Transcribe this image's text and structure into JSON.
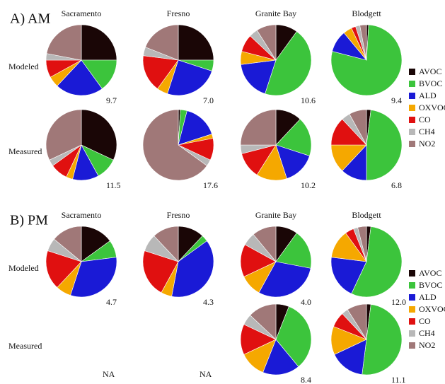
{
  "panels": [
    {
      "title": "A) AM",
      "columns": [
        "Sacramento",
        "Fresno",
        "Granite Bay",
        "Blodgett"
      ],
      "rows": [
        "Modeled",
        "Measured"
      ],
      "legend": {
        "categories": [
          "AVOC",
          "BVOC",
          "ALD",
          "OXVOC",
          "CO",
          "CH4",
          "NO2"
        ],
        "colors": [
          "#1a0606",
          "#3cc43c",
          "#1a1ad6",
          "#f5a800",
          "#e01010",
          "#b8b8b8",
          "#a07878"
        ]
      }
    },
    {
      "title": "B) PM",
      "columns": [
        "Sacramento",
        "Fresno",
        "Granite Bay",
        "Blodgett"
      ],
      "rows": [
        "Modeled",
        "Measured"
      ],
      "legend": {
        "categories": [
          "AVOC",
          "BVOC",
          "ALD",
          "OXVOC",
          "CO",
          "CH4",
          "NO2"
        ],
        "colors": [
          "#1a0606",
          "#3cc43c",
          "#1a1ad6",
          "#f5a800",
          "#e01010",
          "#b8b8b8",
          "#a07878"
        ]
      },
      "notes": [
        "NA",
        "NA"
      ]
    }
  ],
  "chart_data": [
    {
      "type": "pie",
      "values": [
        25,
        15,
        22,
        5,
        8,
        3,
        22
      ],
      "annotation": "9.7"
    },
    {
      "type": "pie",
      "values": [
        25,
        5,
        25,
        5,
        17,
        4,
        19
      ],
      "annotation": "7.0"
    },
    {
      "type": "pie",
      "values": [
        10,
        45,
        18,
        6,
        8,
        4,
        9
      ],
      "annotation": "10.6"
    },
    {
      "type": "pie",
      "values": [
        1,
        78,
        10,
        4,
        2,
        2,
        3
      ],
      "annotation": "9.4"
    },
    {
      "type": "pie",
      "values": [
        32,
        10,
        12,
        3,
        8,
        3,
        32
      ],
      "annotation": "11.5"
    },
    {
      "type": "pie",
      "values": [
        1,
        3,
        16,
        2,
        10,
        3,
        65
      ],
      "annotation": "17.6"
    },
    {
      "type": "pie",
      "values": [
        12,
        18,
        15,
        14,
        12,
        4,
        25
      ],
      "annotation": "10.2"
    },
    {
      "type": "pie",
      "values": [
        2,
        48,
        12,
        13,
        13,
        4,
        8
      ],
      "annotation": "6.8"
    },
    {
      "type": "pie",
      "values": [
        15,
        8,
        32,
        7,
        18,
        6,
        14
      ],
      "annotation": "4.7"
    },
    {
      "type": "pie",
      "values": [
        12,
        3,
        38,
        5,
        22,
        8,
        12
      ],
      "annotation": "4.3"
    },
    {
      "type": "pie",
      "values": [
        10,
        18,
        30,
        10,
        15,
        6,
        11
      ],
      "annotation": "4.0"
    },
    {
      "type": "pie",
      "values": [
        2,
        55,
        20,
        13,
        4,
        2,
        4
      ],
      "annotation": "12.0"
    },
    {
      "type": "pie",
      "values": [
        6,
        33,
        17,
        12,
        14,
        5,
        13
      ],
      "annotation": "8.4"
    },
    {
      "type": "pie",
      "values": [
        2,
        50,
        16,
        13,
        7,
        3,
        9
      ],
      "annotation": "11.1"
    }
  ]
}
